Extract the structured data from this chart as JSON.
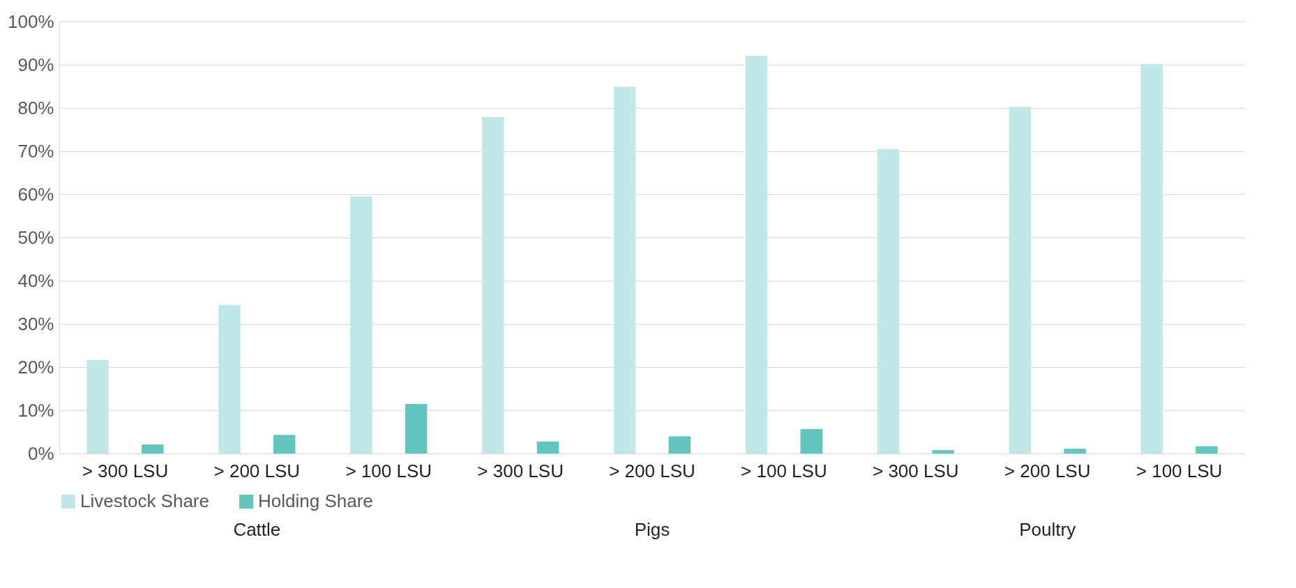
{
  "chart_data": {
    "type": "bar",
    "categories": [
      "> 300 LSU",
      "> 200 LSU",
      "> 100 LSU",
      "> 300 LSU",
      "> 200 LSU",
      "> 100 LSU",
      "> 300 LSU",
      "> 200 LSU",
      "> 100 LSU"
    ],
    "series": [
      {
        "name": "Livestock Share",
        "color": "#c0e8e6",
        "values": [
          21.7,
          34.4,
          59.5,
          77.9,
          84.9,
          92.1,
          70.5,
          80.3,
          90.2
        ]
      },
      {
        "name": "Holding Share",
        "color": "#62c6be",
        "values": [
          2.1,
          4.3,
          11.5,
          2.8,
          4.0,
          5.7,
          0.8,
          1.1,
          1.7
        ]
      }
    ],
    "annotations": [
      "Cattle",
      "Pigs",
      "Poultry"
    ],
    "ylim": [
      0,
      100
    ],
    "yticks": [
      {
        "value": 0,
        "label": "0%"
      },
      {
        "value": 10,
        "label": "10%"
      },
      {
        "value": 20,
        "label": "20%"
      },
      {
        "value": 30,
        "label": "30%"
      },
      {
        "value": 40,
        "label": "40%"
      },
      {
        "value": 50,
        "label": "50%"
      },
      {
        "value": 60,
        "label": "60%"
      },
      {
        "value": 70,
        "label": "70%"
      },
      {
        "value": 80,
        "label": "80%"
      },
      {
        "value": 90,
        "label": "90%"
      },
      {
        "value": 100,
        "label": "100%"
      }
    ],
    "grid": "y",
    "legend": "bottom"
  }
}
